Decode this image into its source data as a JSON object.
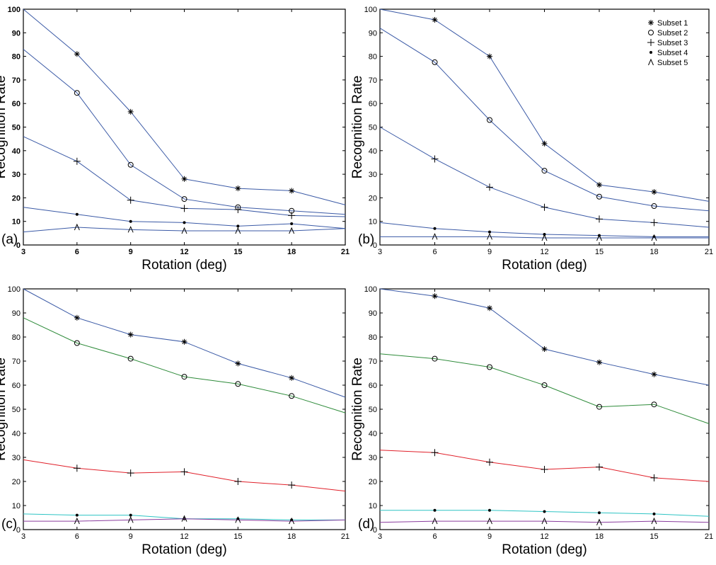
{
  "chart_data": [
    {
      "type": "line",
      "panel_label": "(a)",
      "xlabel": "Rotation (deg)",
      "ylabel": "Recognition Rate",
      "x_tick_labels": [
        "3",
        "6",
        "9",
        "12",
        "15",
        "18",
        "21"
      ],
      "y_tick_labels": [
        "0",
        "10",
        "20",
        "30",
        "40",
        "50",
        "60",
        "70",
        "80",
        "90",
        "100"
      ],
      "xlim": [
        3,
        21
      ],
      "ylim": [
        0,
        100
      ],
      "bold_ticks": true,
      "grid": false,
      "series": [
        {
          "marker": "star",
          "color": "#3b5aa6",
          "y": [
            100,
            81,
            56.5,
            28,
            24,
            23,
            17
          ]
        },
        {
          "marker": "circle",
          "color": "#3b5aa6",
          "y": [
            83,
            64.5,
            34,
            19.5,
            16,
            14.5,
            13
          ]
        },
        {
          "marker": "plus",
          "color": "#3b5aa6",
          "y": [
            46,
            35.5,
            19,
            15.5,
            15,
            12.5,
            12
          ]
        },
        {
          "marker": "dot",
          "color": "#3b5aa6",
          "y": [
            16,
            13,
            10,
            9.5,
            8,
            9,
            7
          ]
        },
        {
          "marker": "triangle",
          "color": "#3b5aa6",
          "y": [
            5.5,
            7.5,
            6.5,
            6,
            6,
            6,
            7
          ]
        }
      ]
    },
    {
      "type": "line",
      "panel_label": "(b)",
      "xlabel": "Rotation (deg)",
      "ylabel": "Recognition Rate",
      "x_tick_labels": [
        "3",
        "6",
        "9",
        "12",
        "15",
        "18",
        "21"
      ],
      "y_tick_labels": [
        "0",
        "10",
        "20",
        "30",
        "40",
        "50",
        "60",
        "70",
        "80",
        "90",
        "100"
      ],
      "xlim": [
        3,
        21
      ],
      "ylim": [
        0,
        100
      ],
      "bold_ticks": false,
      "grid": false,
      "legend": {
        "position": "top-right",
        "entries": [
          {
            "label": "Subset 1",
            "marker": "star"
          },
          {
            "label": "Subset 2",
            "marker": "circle"
          },
          {
            "label": "Subset 3",
            "marker": "plus"
          },
          {
            "label": "Subset 4",
            "marker": "dot"
          },
          {
            "label": "Subset 5",
            "marker": "triangle"
          }
        ]
      },
      "series": [
        {
          "marker": "star",
          "color": "#3b5aa6",
          "y": [
            100,
            95.5,
            80,
            43,
            25.5,
            22.5,
            18.5
          ]
        },
        {
          "marker": "circle",
          "color": "#3b5aa6",
          "y": [
            92,
            77.5,
            53,
            31.5,
            20.5,
            16.5,
            14.5
          ]
        },
        {
          "marker": "plus",
          "color": "#3b5aa6",
          "y": [
            50,
            36.5,
            24.5,
            16,
            11,
            9.5,
            7.5
          ]
        },
        {
          "marker": "dot",
          "color": "#3b5aa6",
          "y": [
            9.5,
            7,
            5.5,
            4.5,
            4,
            3.5,
            3.5
          ]
        },
        {
          "marker": "triangle",
          "color": "#3b5aa6",
          "y": [
            3.5,
            3.5,
            3.5,
            3,
            3,
            3,
            3
          ]
        }
      ]
    },
    {
      "type": "line",
      "panel_label": "(c)",
      "xlabel": "Rotation (deg)",
      "ylabel": "Recognition Rate",
      "x_tick_labels": [
        "3",
        "6",
        "9",
        "12",
        "15",
        "18",
        "21"
      ],
      "y_tick_labels": [
        "0",
        "10",
        "20",
        "30",
        "40",
        "50",
        "60",
        "70",
        "80",
        "90",
        "100"
      ],
      "xlim": [
        3,
        21
      ],
      "ylim": [
        0,
        100
      ],
      "bold_ticks": false,
      "grid": false,
      "series": [
        {
          "marker": "star",
          "color": "#3b5aa6",
          "y": [
            100,
            88,
            81,
            78,
            69,
            63,
            55
          ]
        },
        {
          "marker": "circle",
          "color": "#2e8b3a",
          "y": [
            88,
            77.5,
            71,
            63.5,
            60.5,
            55.5,
            48.5
          ]
        },
        {
          "marker": "plus",
          "color": "#e0202a",
          "y": [
            29,
            25.5,
            23.5,
            24,
            20,
            18.5,
            16
          ]
        },
        {
          "marker": "dot",
          "color": "#2ec4c4",
          "y": [
            6.5,
            6,
            6,
            4.5,
            4.5,
            4,
            4
          ]
        },
        {
          "marker": "triangle",
          "color": "#8a3d9e",
          "y": [
            3.5,
            3.5,
            4,
            4.5,
            4,
            3.5,
            4
          ]
        }
      ]
    },
    {
      "type": "line",
      "panel_label": "(d)",
      "xlabel": "Rotation (deg)",
      "ylabel": "Recognition Rate",
      "x_tick_labels": [
        "3",
        "6",
        "9",
        "12",
        "18",
        "15",
        "21"
      ],
      "y_tick_labels": [
        "0",
        "10",
        "20",
        "30",
        "40",
        "50",
        "60",
        "70",
        "80",
        "90",
        "100"
      ],
      "xlim": [
        3,
        21
      ],
      "ylim": [
        0,
        100
      ],
      "bold_ticks": false,
      "grid": false,
      "series": [
        {
          "marker": "star",
          "color": "#3b5aa6",
          "y": [
            100,
            97,
            92,
            75,
            69.5,
            64.5,
            60
          ]
        },
        {
          "marker": "circle",
          "color": "#2e8b3a",
          "y": [
            73,
            71,
            67.5,
            60,
            51,
            52,
            44
          ]
        },
        {
          "marker": "plus",
          "color": "#e0202a",
          "y": [
            33,
            32,
            28,
            25,
            26,
            21.5,
            20
          ]
        },
        {
          "marker": "dot",
          "color": "#2ec4c4",
          "y": [
            8,
            8,
            8,
            7.5,
            7,
            6.5,
            5.5
          ]
        },
        {
          "marker": "triangle",
          "color": "#8a3d9e",
          "y": [
            3,
            3.5,
            3.5,
            3.5,
            3,
            3.5,
            3
          ]
        }
      ]
    }
  ]
}
